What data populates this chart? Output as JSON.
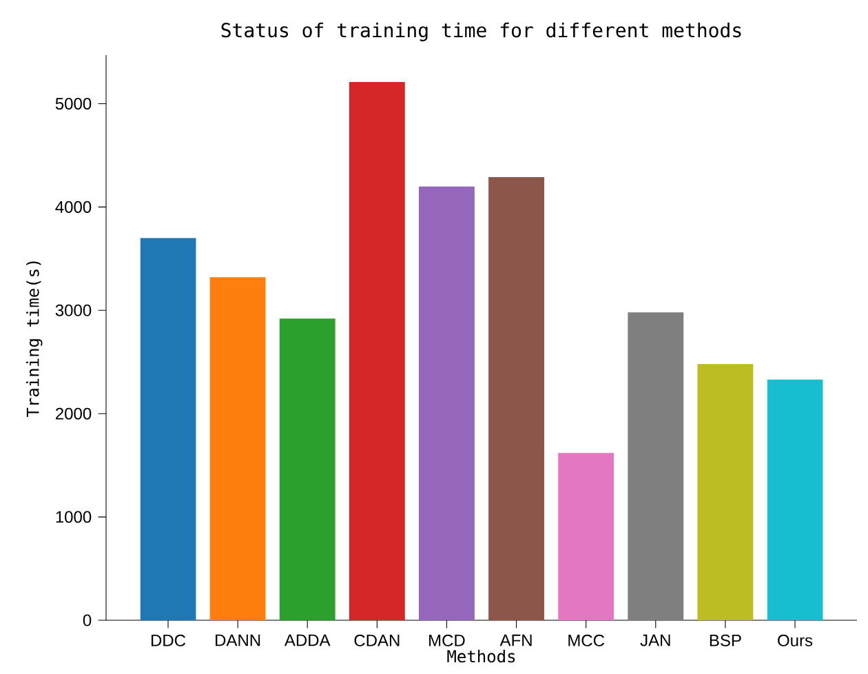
{
  "chart_data": {
    "type": "bar",
    "title": "Status of training time for different methods",
    "xlabel": "Methods",
    "ylabel": "Training time(s)",
    "categories": [
      "DDC",
      "DANN",
      "ADDA",
      "CDAN",
      "MCD",
      "AFN",
      "MCC",
      "JAN",
      "BSP",
      "Ours"
    ],
    "values": [
      3700,
      3320,
      2920,
      5210,
      4200,
      4290,
      1620,
      2980,
      2480,
      2330
    ],
    "colors": [
      "#1f77b4",
      "#ff7f0e",
      "#2ca02c",
      "#d62728",
      "#9467bd",
      "#8c564b",
      "#e377c2",
      "#7f7f7f",
      "#bcbd22",
      "#17becf"
    ],
    "ylim": [
      0,
      5470
    ],
    "yticks": [
      0,
      1000,
      2000,
      3000,
      4000,
      5000
    ]
  }
}
